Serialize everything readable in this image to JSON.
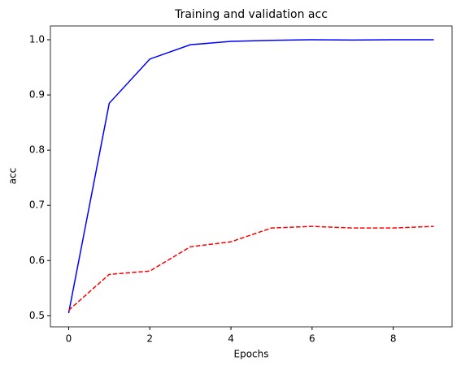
{
  "chart_data": {
    "type": "line",
    "title": "Training and validation acc",
    "x_label": "Epochs",
    "y_label": "acc",
    "x": [
      0,
      1,
      2,
      3,
      4,
      5,
      6,
      7,
      8,
      9
    ],
    "series": [
      {
        "color": "#0000ff",
        "linestyle": "solid",
        "values": [
          0.505,
          0.885,
          0.965,
          0.991,
          0.997,
          0.999,
          1.0,
          0.9995,
          1.0,
          1.0
        ]
      },
      {
        "color": "#ff0000",
        "linestyle": "dashed",
        "values": [
          0.51,
          0.575,
          0.581,
          0.625,
          0.634,
          0.659,
          0.662,
          0.659,
          0.659,
          0.662
        ]
      }
    ],
    "xlim": [
      -0.45,
      9.45
    ],
    "xticks": [
      0,
      2,
      4,
      6,
      8
    ],
    "ylim": [
      0.48,
      1.025
    ],
    "yticks": [
      0.5,
      0.6,
      0.7,
      0.8,
      0.9,
      {
        "value": 1,
        "label": "1.0"
      }
    ],
    "grid": false
  }
}
